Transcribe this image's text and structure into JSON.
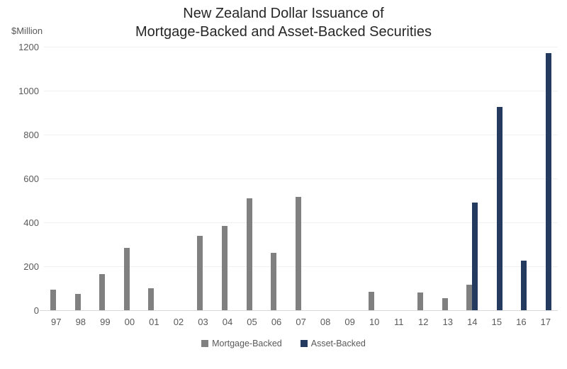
{
  "title": {
    "line1": "New Zealand Dollar Issuance of",
    "line2": "Mortgage-Backed and Asset-Backed Securities"
  },
  "axes": {
    "y_unit": "$Million",
    "y_ticks": [
      0,
      200,
      400,
      600,
      800,
      1000,
      1200
    ]
  },
  "legend": {
    "items": [
      {
        "label": "Mortgage-Backed",
        "color": "#808080"
      },
      {
        "label": "Asset-Backed",
        "color": "#243A5E"
      }
    ]
  },
  "colors": {
    "mortgage_backed": "#808080",
    "asset_backed": "#243A5E",
    "axis_line": "#d9d9d9",
    "gridline": "#f0f0f0",
    "title_text": "#262626",
    "label_text": "#595959"
  },
  "chart_data": {
    "type": "bar",
    "title": "New Zealand Dollar Issuance of Mortgage-Backed and Asset-Backed Securities",
    "xlabel": "",
    "ylabel": "$Million",
    "ylim": [
      0,
      1200
    ],
    "grid": true,
    "legend_position": "bottom",
    "categories": [
      "97",
      "98",
      "99",
      "00",
      "01",
      "02",
      "03",
      "04",
      "05",
      "06",
      "07",
      "08",
      "09",
      "10",
      "11",
      "12",
      "13",
      "14",
      "15",
      "16",
      "17"
    ],
    "series": [
      {
        "name": "Mortgage-Backed",
        "color": "#808080",
        "values": [
          95,
          75,
          165,
          285,
          100,
          0,
          340,
          385,
          510,
          260,
          515,
          0,
          0,
          85,
          0,
          80,
          55,
          115,
          0,
          0,
          0
        ]
      },
      {
        "name": "Asset-Backed",
        "color": "#243A5E",
        "values": [
          0,
          0,
          0,
          0,
          0,
          0,
          0,
          0,
          0,
          0,
          0,
          0,
          0,
          0,
          0,
          0,
          0,
          490,
          925,
          225,
          1170
        ]
      }
    ]
  }
}
